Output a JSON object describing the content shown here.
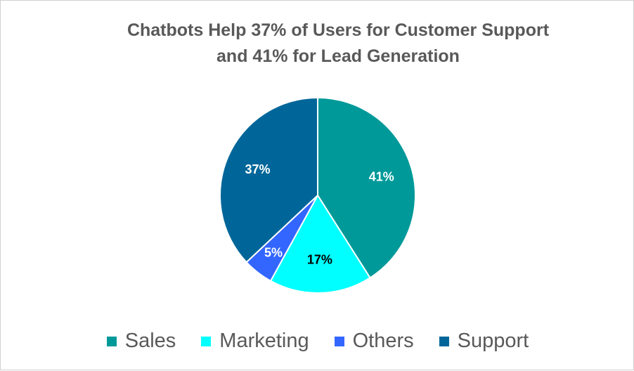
{
  "chart_data": {
    "type": "pie",
    "title_line1": "Chatbots Help 37% of Users for Customer Support",
    "title_line2": "and 41% for Lead Generation",
    "legend_position": "bottom",
    "slices": [
      {
        "label": "Sales",
        "value": 41,
        "display": "41%",
        "color": "#009999",
        "label_color": "#ffffff"
      },
      {
        "label": "Marketing",
        "value": 17,
        "display": "17%",
        "color": "#00ffff",
        "label_color": "#000000"
      },
      {
        "label": "Others",
        "value": 5,
        "display": "5%",
        "color": "#3366ff",
        "label_color": "#ffffff"
      },
      {
        "label": "Support",
        "value": 37,
        "display": "37%",
        "color": "#006699",
        "label_color": "#ffffff"
      }
    ]
  }
}
